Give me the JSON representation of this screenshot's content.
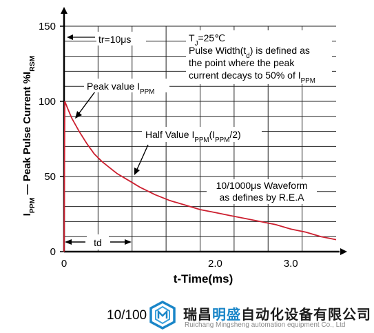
{
  "chart_data": {
    "type": "line",
    "title": "",
    "xlabel": "t-Time(ms)",
    "ylabel": {
      "parts": [
        {
          "t": "I",
          "sub": false
        },
        {
          "t": "PPM",
          "sub": true
        },
        {
          "t": " — Peak Pulse Current  %I",
          "sub": false
        },
        {
          "t": "RSM",
          "sub": true
        }
      ]
    },
    "xlim": [
      0,
      3.6
    ],
    "ylim": [
      0,
      150
    ],
    "x_ticks": [
      {
        "v": 0,
        "label": "0"
      },
      {
        "v": 2.0,
        "label": "2.0"
      },
      {
        "v": 3.0,
        "label": "3.0"
      }
    ],
    "y_ticks": [
      {
        "v": 0,
        "label": "0"
      },
      {
        "v": 50,
        "label": "50"
      },
      {
        "v": 100,
        "label": "100"
      },
      {
        "v": 150,
        "label": "150"
      }
    ],
    "grid": true,
    "series": [
      {
        "x": [
          0,
          0.01,
          0.05,
          0.1,
          0.2,
          0.3,
          0.4,
          0.5,
          0.6,
          0.7,
          0.8,
          0.9,
          1.0,
          1.2,
          1.4,
          1.6,
          1.8,
          2.0,
          2.2,
          2.4,
          2.6,
          2.8,
          3.0,
          3.2,
          3.4,
          3.6
        ],
        "y": [
          0,
          100,
          95,
          89,
          80,
          72,
          65,
          60,
          56,
          52,
          49,
          46,
          43,
          38,
          34,
          31,
          28,
          26,
          24,
          22,
          20,
          18,
          15,
          13,
          10,
          8
        ],
        "color": "#cc1f2f"
      }
    ],
    "annotations": {
      "tr": "tr=10μs",
      "td": "td",
      "peak": [
        {
          "t": "Peak value I",
          "sub": false
        },
        {
          "t": "PPM",
          "sub": true
        }
      ],
      "half": [
        {
          "t": "Half Value I",
          "sub": false
        },
        {
          "t": "PPM",
          "sub": true
        },
        {
          "t": "(I",
          "sub": false
        },
        {
          "t": "PPM",
          "sub": true
        },
        {
          "t": "/2)",
          "sub": false
        }
      ],
      "info_lines": [
        [
          {
            "t": "T",
            "sub": false
          },
          {
            "t": "J",
            "sub": true
          },
          {
            "t": "=25℃",
            "sub": false
          }
        ],
        [
          {
            "t": "Pulse Width(t",
            "sub": false
          },
          {
            "t": "d",
            "sub": true
          },
          {
            "t": ") is defined as",
            "sub": false
          }
        ],
        [
          {
            "t": "the point where the peak",
            "sub": false
          }
        ],
        [
          {
            "t": "current decays to 50% of I",
            "sub": false
          },
          {
            "t": "PPM",
            "sub": true
          }
        ]
      ],
      "waveform_lines": [
        "10/1000μs Waveform",
        "as defines by R.E.A"
      ]
    }
  },
  "caption": "10/100",
  "watermark": {
    "cn_pre": "瑞昌",
    "cn_hl": "明盛",
    "cn_post": "自动化设备有限公司",
    "en": "Ruichang Mingsheng automation equipment Co., Ltd",
    "accent": "#1a86c8"
  }
}
